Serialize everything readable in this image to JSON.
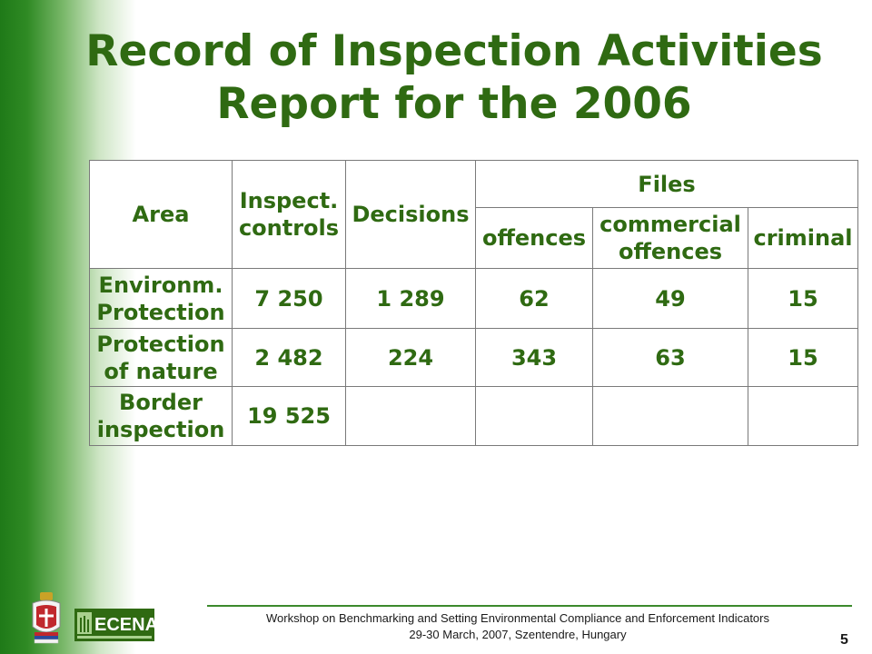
{
  "slide": {
    "title_line1": "Record of Inspection Activities",
    "title_line2": "Report for the 2006",
    "page_number": "5"
  },
  "table": {
    "headers": {
      "area": "Area",
      "inspect_controls": "Inspect. controls",
      "decisions": "Decisions",
      "files": "Files",
      "offences": "offences",
      "commercial_offences": "commercial offences",
      "criminal": "criminal"
    },
    "rows": [
      {
        "area": "Environm. Protection",
        "inspect_controls": "7 250",
        "decisions": "1 289",
        "offences": "62",
        "commercial_offences": "49",
        "criminal": "15"
      },
      {
        "area": "Protection of nature",
        "inspect_controls": "2 482",
        "decisions": "224",
        "offences": "343",
        "commercial_offences": "63",
        "criminal": "15"
      },
      {
        "area": "Border inspection",
        "inspect_controls": "19 525",
        "decisions": "",
        "offences": "",
        "commercial_offences": "",
        "criminal": ""
      }
    ]
  },
  "footer": {
    "line1": "Workshop on Benchmarking and Setting Environmental Compliance and Enforcement Indicators",
    "line2": "29-30 March, 2007, Szentendre, Hungary",
    "logo_text": "ECENA"
  },
  "colors": {
    "title": "#2f6a12",
    "band": "#1f7a18",
    "footer_rule": "#3c8a2c"
  },
  "icons": {
    "emblem": "serbian-coat-of-arms-icon",
    "logo": "ecena-logo-icon"
  }
}
